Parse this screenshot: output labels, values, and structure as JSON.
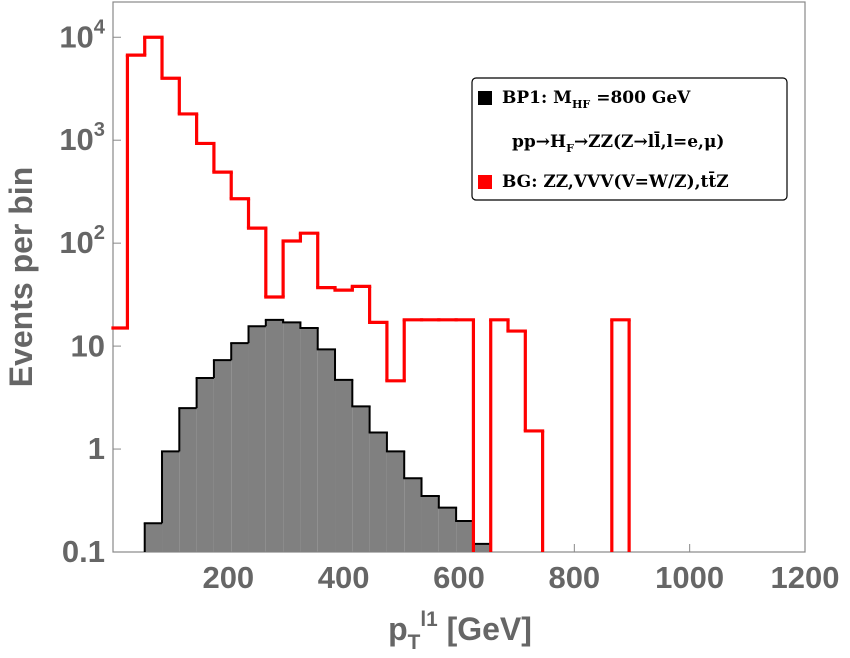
{
  "chart_data": {
    "type": "histogram",
    "x_label": "p_{T}^{l1} [GeV]",
    "y_label": "Events per bin",
    "bins": [
      0,
      25,
      55,
      85,
      115,
      145,
      175,
      205,
      235,
      265,
      295,
      325,
      355,
      385,
      415,
      445,
      475,
      505,
      535,
      565,
      595,
      625,
      655,
      685,
      715,
      745,
      775,
      805,
      835,
      865,
      895
    ],
    "series": [
      {
        "name": "BG: ZZ,VVV(V=W/Z),tt̄Z",
        "color": "#ff0000",
        "filled": false,
        "values": [
          15,
          6700,
          10000,
          4000,
          1800,
          930,
          490,
          270,
          140,
          30,
          105,
          125,
          37,
          35,
          38,
          17,
          4.6,
          18,
          18,
          18,
          18,
          0,
          18,
          14,
          1.5,
          0,
          0,
          0,
          0,
          18
        ]
      },
      {
        "name": "BP1: M_{HF} =800 GeV",
        "color": "#808080",
        "filled": true,
        "values": [
          0,
          0,
          0.19,
          0.95,
          2.5,
          4.9,
          7.3,
          10.7,
          15.6,
          18,
          17,
          15,
          9.3,
          4.7,
          2.6,
          1.45,
          0.95,
          0.52,
          0.35,
          0.27,
          0.2,
          0.12,
          0.1,
          0,
          0,
          0,
          0,
          0,
          0,
          0
        ]
      }
    ],
    "annotation": "pp→H_{F}→ZZ(Z→ll̄,l=e,μ)",
    "xlim": [
      0,
      1200
    ],
    "xticks": [
      200,
      400,
      600,
      800,
      1000,
      1200
    ],
    "ylim": [
      0.1,
      22000
    ],
    "log_y": true,
    "yticks": [
      0.1,
      1,
      10,
      {
        "value": 100,
        "label": "10^{2}"
      },
      {
        "value": 1000,
        "label": "10^{3}"
      },
      {
        "value": 10000,
        "label": "10^{4}"
      }
    ],
    "legend": "upper right"
  }
}
